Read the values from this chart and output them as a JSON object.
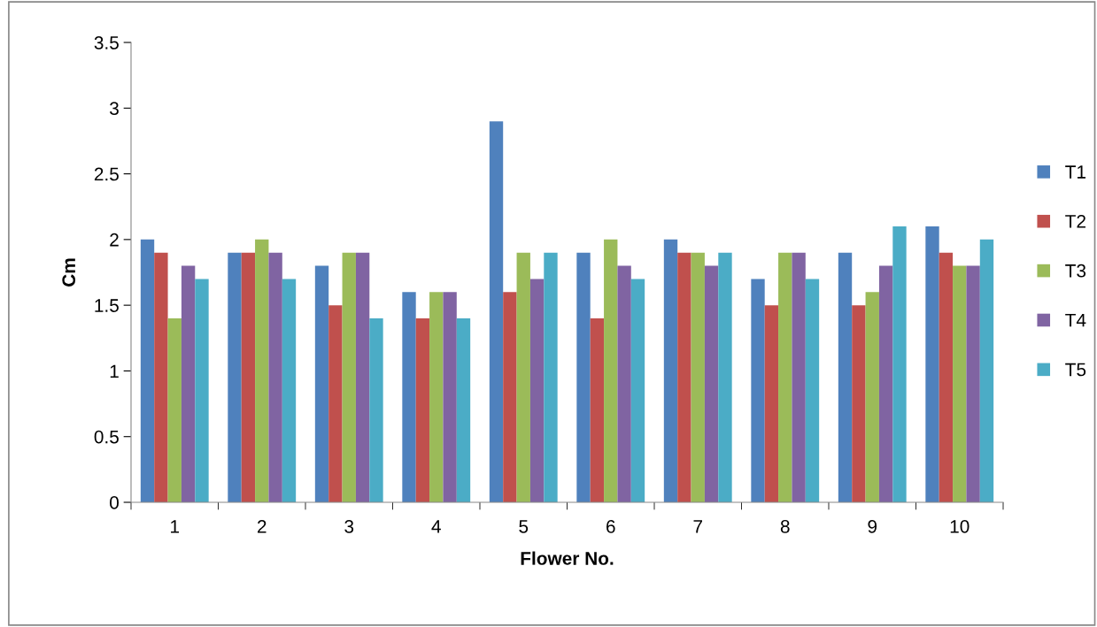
{
  "chart_data": {
    "type": "bar",
    "xlabel": "Flower No.",
    "ylabel": "Cm",
    "categories": [
      "1",
      "2",
      "3",
      "4",
      "5",
      "6",
      "7",
      "8",
      "9",
      "10"
    ],
    "series": [
      {
        "name": "T1",
        "color": "#4f81bd",
        "values": [
          2.0,
          1.9,
          1.8,
          1.6,
          2.9,
          1.9,
          2.0,
          1.7,
          1.9,
          2.1
        ]
      },
      {
        "name": "T2",
        "color": "#c0504d",
        "values": [
          1.9,
          1.9,
          1.5,
          1.4,
          1.6,
          1.4,
          1.9,
          1.5,
          1.5,
          1.9
        ]
      },
      {
        "name": "T3",
        "color": "#9bbb59",
        "values": [
          1.4,
          2.0,
          1.9,
          1.6,
          1.9,
          2.0,
          1.9,
          1.9,
          1.6,
          1.8
        ]
      },
      {
        "name": "T4",
        "color": "#8064a2",
        "values": [
          1.8,
          1.9,
          1.9,
          1.6,
          1.7,
          1.8,
          1.8,
          1.9,
          1.8,
          1.8
        ]
      },
      {
        "name": "T5",
        "color": "#4bacc6",
        "values": [
          1.7,
          1.7,
          1.4,
          1.4,
          1.9,
          1.7,
          1.9,
          1.7,
          2.1,
          2.0
        ]
      }
    ],
    "ylim": [
      0,
      3.5
    ],
    "yticks": [
      0,
      0.5,
      1,
      1.5,
      2,
      2.5,
      3,
      3.5
    ],
    "grid": false,
    "legend": "right"
  }
}
